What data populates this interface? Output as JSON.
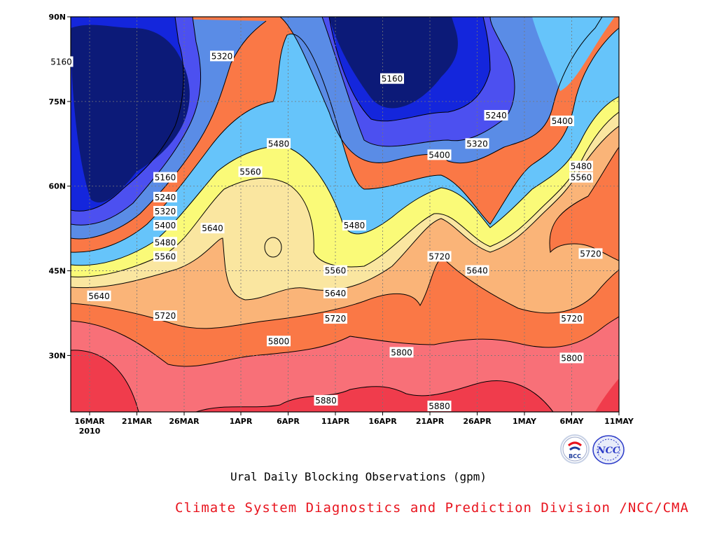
{
  "chart_data": {
    "type": "contour",
    "title": "Ural Daily Blocking Observations (gpm)",
    "xaxis": {
      "ticks": [
        "16MAR",
        "21MAR",
        "26MAR",
        "1APR",
        "6APR",
        "11APR",
        "16APR",
        "21APR",
        "26APR",
        "1MAY",
        "6MAY",
        "11MAY"
      ],
      "year_label": "2010"
    },
    "yaxis": {
      "ticks": [
        "30N",
        "45N",
        "60N",
        "75N",
        "90N"
      ],
      "range": [
        "20N",
        "90N"
      ]
    },
    "contour_levels": [
      5160,
      5240,
      5320,
      5400,
      5480,
      5560,
      5640,
      5720,
      5800,
      5880
    ],
    "contour_labels": [
      {
        "text": "5160",
        "x": "13MAR",
        "lat": 82
      },
      {
        "text": "5160",
        "x": "17APR",
        "lat": 79
      },
      {
        "text": "5160",
        "x": "24MAR",
        "lat": 61.5
      },
      {
        "text": "5320",
        "x": "30MAR",
        "lat": 83
      },
      {
        "text": "5240",
        "x": "28APR",
        "lat": 72.5
      },
      {
        "text": "5400",
        "x": "5MAY",
        "lat": 71.5
      },
      {
        "text": "5480",
        "x": "5APR",
        "lat": 67.5
      },
      {
        "text": "5320",
        "x": "26APR",
        "lat": 67.5
      },
      {
        "text": "5400",
        "x": "22APR",
        "lat": 65.5
      },
      {
        "text": "5560",
        "x": "2APR",
        "lat": 62.5
      },
      {
        "text": "5480",
        "x": "7MAY",
        "lat": 63.5
      },
      {
        "text": "5560",
        "x": "7MAY",
        "lat": 61.5
      },
      {
        "text": "5240",
        "x": "24MAR",
        "lat": 58
      },
      {
        "text": "5320",
        "x": "24MAR",
        "lat": 55.5
      },
      {
        "text": "5400",
        "x": "24MAR",
        "lat": 53
      },
      {
        "text": "5480",
        "x": "13APR",
        "lat": 53
      },
      {
        "text": "5640",
        "x": "29MAR",
        "lat": 52.5
      },
      {
        "text": "5480",
        "x": "24MAR",
        "lat": 50
      },
      {
        "text": "5720",
        "x": "22APR",
        "lat": 47.5
      },
      {
        "text": "5720",
        "x": "8MAY",
        "lat": 48
      },
      {
        "text": "5560",
        "x": "24MAR",
        "lat": 47.5
      },
      {
        "text": "5560",
        "x": "11APR",
        "lat": 45
      },
      {
        "text": "5640",
        "x": "26APR",
        "lat": 45
      },
      {
        "text": "5640",
        "x": "17MAR",
        "lat": 40.5
      },
      {
        "text": "5640",
        "x": "11APR",
        "lat": 41
      },
      {
        "text": "5720",
        "x": "24MAR",
        "lat": 37
      },
      {
        "text": "5720",
        "x": "11APR",
        "lat": 36.5
      },
      {
        "text": "5720",
        "x": "6MAY",
        "lat": 36.5
      },
      {
        "text": "5800",
        "x": "5APR",
        "lat": 32.5
      },
      {
        "text": "5800",
        "x": "18APR",
        "lat": 30.5
      },
      {
        "text": "5800",
        "x": "6MAY",
        "lat": 29.5
      },
      {
        "text": "5880",
        "x": "10APR",
        "lat": 22
      },
      {
        "text": "5880",
        "x": "22APR",
        "lat": 21
      }
    ],
    "colors": [
      "#0c1a78",
      "#1426dc",
      "#4c50f0",
      "#5a8ce6",
      "#66c4fa",
      "#fafa78",
      "#fae6a0",
      "#fab478",
      "#fa7846",
      "#f87078",
      "#f03c4c"
    ]
  },
  "footer": {
    "title": "Ural Daily Blocking Observations (gpm)",
    "credit": "Climate System Diagnostics and Prediction Division /NCC/CMA",
    "logo_left_text": "BCC",
    "logo_right_text": "NCC"
  }
}
